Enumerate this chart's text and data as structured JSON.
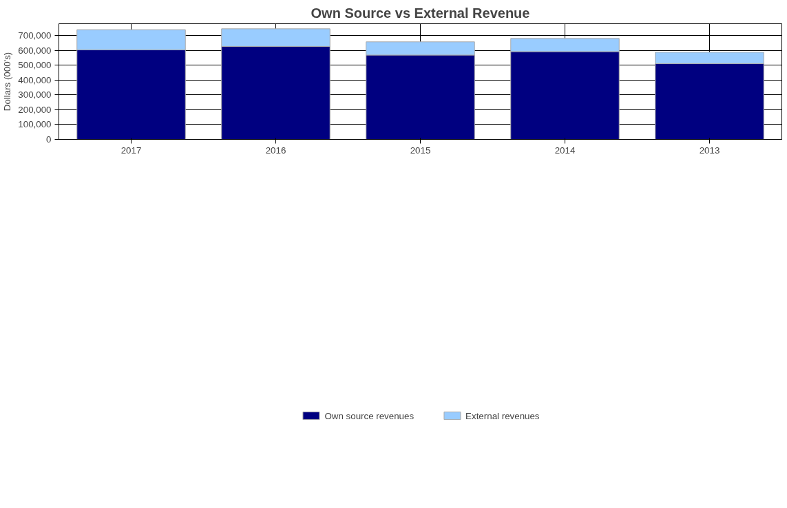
{
  "chart_data": {
    "type": "bar",
    "title": "Own Source vs External Revenue",
    "ylabel": "Dollars (000's)",
    "categories": [
      "2017",
      "2016",
      "2015",
      "2014",
      "2013"
    ],
    "stacked": true,
    "series": [
      {
        "name": "Own source revenues",
        "color": "#000080",
        "values": [
          604000,
          627000,
          569000,
          592000,
          511000
        ]
      },
      {
        "name": "External revenues",
        "color": "#99ccff",
        "values": [
          136000,
          119000,
          89000,
          89000,
          77000
        ]
      }
    ],
    "ylim": [
      0,
      780000
    ],
    "yticks": [
      {
        "value": 0,
        "label": "0"
      },
      {
        "value": 100000,
        "label": "100,000"
      },
      {
        "value": 200000,
        "label": "200,000"
      },
      {
        "value": 300000,
        "label": "300,000"
      },
      {
        "value": 400000,
        "label": "400,000"
      },
      {
        "value": 500000,
        "label": "500,000"
      },
      {
        "value": 600000,
        "label": "600,000"
      },
      {
        "value": 700000,
        "label": "700,000"
      }
    ],
    "grid": true,
    "legend": "bottom"
  }
}
